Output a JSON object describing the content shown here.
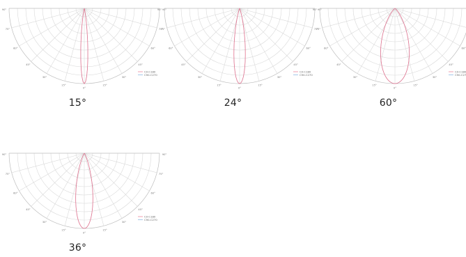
{
  "chart_data": [
    {
      "type": "polar",
      "title": "15°",
      "beam_angle_deg": 15,
      "angle_tick_labels": [
        "90°",
        "75°",
        "60°",
        "45°",
        "30°",
        "15°",
        "0°",
        "15°",
        "30°",
        "45°",
        "60°",
        "75°",
        "90°"
      ],
      "legend": [
        "C0-C180",
        "C90-C270"
      ],
      "series_colors": [
        "#e8768f",
        "#7fb0e0"
      ]
    },
    {
      "type": "polar",
      "title": "24°",
      "beam_angle_deg": 24,
      "angle_tick_labels": [
        "90°",
        "75°",
        "60°",
        "45°",
        "30°",
        "15°",
        "0°",
        "15°",
        "30°",
        "45°",
        "60°",
        "75°",
        "90°"
      ],
      "legend": [
        "C0-C180",
        "C90-C270"
      ],
      "series_colors": [
        "#e8768f",
        "#7fb0e0"
      ]
    },
    {
      "type": "polar",
      "title": "60°",
      "beam_angle_deg": 60,
      "angle_tick_labels": [
        "90°",
        "75°",
        "60°",
        "45°",
        "30°",
        "15°",
        "0°",
        "15°",
        "30°",
        "45°",
        "60°",
        "75°",
        "90°"
      ],
      "legend": [
        "C0-C180",
        "C90-C270"
      ],
      "series_colors": [
        "#e8768f",
        "#7fb0e0"
      ]
    },
    {
      "type": "polar",
      "title": "36°",
      "beam_angle_deg": 36,
      "angle_tick_labels": [
        "90°",
        "75°",
        "60°",
        "45°",
        "30°",
        "15°",
        "0°",
        "15°",
        "30°",
        "45°",
        "60°",
        "75°",
        "90°"
      ],
      "legend": [
        "C0-C180",
        "C90-C270"
      ],
      "series_colors": [
        "#e8768f",
        "#7fb0e0"
      ]
    }
  ]
}
